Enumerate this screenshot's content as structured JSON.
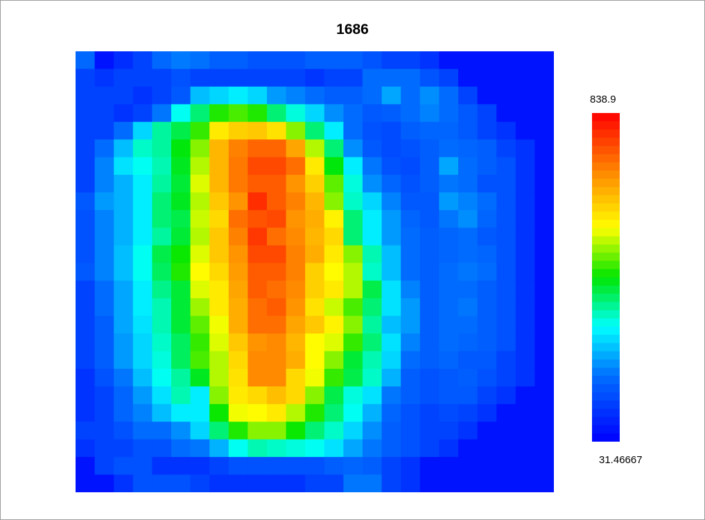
{
  "chart_data": {
    "type": "heatmap",
    "title": "1686",
    "colorscale": "jet",
    "colorbar": {
      "max_label": "838.9",
      "min_label": "31.46667",
      "max": 838.9,
      "min": 31.46667
    },
    "rows": 25,
    "cols": 25,
    "values": [
      [
        182,
        59,
        98,
        130,
        182,
        203,
        195,
        172,
        172,
        155,
        155,
        155,
        172,
        172,
        172,
        155,
        130,
        130,
        106,
        59,
        59,
        59,
        59,
        59,
        59
      ],
      [
        130,
        110,
        130,
        130,
        130,
        150,
        130,
        130,
        130,
        130,
        130,
        130,
        110,
        130,
        130,
        190,
        190,
        190,
        155,
        130,
        59,
        59,
        59,
        59,
        59
      ],
      [
        130,
        130,
        130,
        106,
        130,
        160,
        260,
        280,
        300,
        280,
        230,
        210,
        190,
        170,
        170,
        190,
        240,
        190,
        220,
        190,
        130,
        59,
        59,
        59,
        59
      ],
      [
        130,
        130,
        106,
        130,
        200,
        320,
        380,
        450,
        470,
        450,
        380,
        330,
        280,
        220,
        190,
        160,
        170,
        190,
        210,
        190,
        160,
        130,
        59,
        59,
        59
      ],
      [
        130,
        130,
        190,
        280,
        360,
        400,
        460,
        580,
        610,
        620,
        590,
        500,
        380,
        300,
        190,
        150,
        140,
        170,
        180,
        180,
        160,
        130,
        106,
        59,
        59
      ],
      [
        130,
        190,
        260,
        340,
        360,
        430,
        500,
        640,
        700,
        730,
        730,
        660,
        520,
        380,
        220,
        160,
        140,
        150,
        170,
        190,
        180,
        170,
        130,
        106,
        59
      ],
      [
        130,
        210,
        290,
        320,
        350,
        420,
        520,
        640,
        710,
        760,
        760,
        720,
        580,
        430,
        300,
        200,
        150,
        140,
        170,
        240,
        190,
        170,
        150,
        106,
        59
      ],
      [
        130,
        210,
        250,
        300,
        360,
        410,
        540,
        640,
        710,
        740,
        740,
        680,
        610,
        480,
        330,
        220,
        180,
        150,
        170,
        200,
        190,
        150,
        150,
        106,
        59
      ],
      [
        160,
        230,
        250,
        300,
        380,
        420,
        520,
        620,
        680,
        790,
        740,
        700,
        640,
        500,
        340,
        280,
        210,
        160,
        160,
        230,
        210,
        190,
        150,
        106,
        59
      ],
      [
        150,
        210,
        250,
        300,
        380,
        400,
        530,
        600,
        720,
        750,
        760,
        680,
        650,
        570,
        380,
        300,
        230,
        180,
        160,
        200,
        220,
        180,
        150,
        106,
        59
      ],
      [
        150,
        210,
        250,
        300,
        360,
        410,
        520,
        620,
        700,
        780,
        720,
        690,
        640,
        600,
        380,
        300,
        230,
        190,
        170,
        180,
        190,
        160,
        150,
        106,
        59
      ],
      [
        150,
        210,
        260,
        320,
        400,
        440,
        540,
        620,
        680,
        760,
        760,
        700,
        650,
        580,
        500,
        350,
        260,
        190,
        170,
        180,
        190,
        180,
        150,
        106,
        59
      ],
      [
        160,
        210,
        260,
        320,
        390,
        450,
        560,
        600,
        670,
        740,
        740,
        700,
        610,
        560,
        520,
        340,
        260,
        190,
        170,
        190,
        200,
        190,
        150,
        106,
        59
      ],
      [
        130,
        190,
        240,
        300,
        370,
        410,
        540,
        580,
        660,
        740,
        720,
        690,
        610,
        580,
        520,
        400,
        290,
        210,
        170,
        190,
        190,
        170,
        150,
        106,
        59
      ],
      [
        130,
        190,
        240,
        300,
        350,
        410,
        510,
        580,
        650,
        720,
        740,
        680,
        590,
        530,
        470,
        380,
        290,
        230,
        170,
        190,
        200,
        170,
        150,
        106,
        59
      ],
      [
        130,
        170,
        240,
        290,
        350,
        410,
        480,
        550,
        650,
        720,
        720,
        660,
        620,
        570,
        500,
        360,
        260,
        230,
        170,
        190,
        190,
        170,
        150,
        106,
        59
      ],
      [
        130,
        170,
        230,
        280,
        340,
        390,
        460,
        540,
        620,
        680,
        690,
        640,
        560,
        540,
        460,
        380,
        290,
        210,
        170,
        190,
        180,
        170,
        150,
        106,
        59
      ],
      [
        130,
        170,
        230,
        280,
        330,
        390,
        470,
        520,
        600,
        690,
        690,
        650,
        560,
        500,
        410,
        350,
        280,
        190,
        170,
        180,
        160,
        160,
        130,
        106,
        59
      ],
      [
        106,
        150,
        200,
        260,
        320,
        360,
        420,
        520,
        590,
        690,
        690,
        600,
        550,
        460,
        400,
        340,
        250,
        170,
        150,
        160,
        170,
        150,
        130,
        106,
        59
      ],
      [
        106,
        130,
        180,
        230,
        290,
        350,
        300,
        500,
        580,
        600,
        630,
        600,
        500,
        400,
        330,
        290,
        200,
        170,
        150,
        160,
        160,
        130,
        106,
        59,
        59
      ],
      [
        106,
        130,
        180,
        210,
        260,
        300,
        300,
        440,
        550,
        560,
        580,
        520,
        450,
        380,
        320,
        250,
        180,
        150,
        130,
        140,
        130,
        106,
        59,
        59,
        59
      ],
      [
        130,
        130,
        150,
        190,
        190,
        220,
        280,
        380,
        450,
        500,
        500,
        440,
        380,
        340,
        280,
        220,
        170,
        150,
        130,
        130,
        106,
        59,
        59,
        59,
        59
      ],
      [
        106,
        130,
        130,
        150,
        150,
        190,
        200,
        250,
        320,
        350,
        340,
        330,
        320,
        290,
        240,
        200,
        170,
        150,
        130,
        106,
        59,
        59,
        59,
        59,
        59
      ],
      [
        59,
        130,
        150,
        150,
        106,
        106,
        106,
        130,
        150,
        150,
        150,
        150,
        150,
        170,
        180,
        170,
        130,
        106,
        59,
        59,
        59,
        59,
        59,
        59,
        59
      ],
      [
        59,
        59,
        106,
        150,
        150,
        150,
        130,
        106,
        106,
        106,
        106,
        106,
        130,
        130,
        200,
        200,
        130,
        106,
        59,
        59,
        59,
        59,
        59,
        59,
        59
      ]
    ]
  }
}
